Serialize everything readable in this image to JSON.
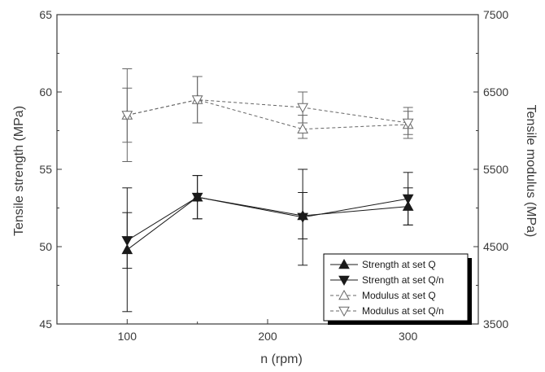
{
  "chart_data": {
    "type": "line",
    "xlabel": "n (rpm)",
    "ylabel": "Tensile strength (MPa)",
    "y2label": "Tensile modulus (MPa)",
    "xlim": [
      50,
      350
    ],
    "ylim": [
      45,
      65
    ],
    "y2lim": [
      3500,
      7500
    ],
    "x_ticks": [
      "100",
      "200",
      "300"
    ],
    "y_ticks": [
      "45",
      "50",
      "55",
      "60",
      "65"
    ],
    "y2_ticks": [
      "3500",
      "4500",
      "5500",
      "6500",
      "7500"
    ],
    "grid": false,
    "legend_position": "bottom-right",
    "x": [
      100,
      150,
      225,
      300
    ],
    "series": [
      {
        "name": "Strength at set Q",
        "axis": "left",
        "marker": "triangle-up",
        "filled": true,
        "line": "solid",
        "values": [
          49.8,
          53.2,
          52.0,
          52.6
        ],
        "err_low": [
          45.8,
          51.8,
          48.8,
          51.4
        ],
        "err_high": [
          53.8,
          54.6,
          55.0,
          53.8
        ]
      },
      {
        "name": "Strength at set Q/n",
        "axis": "left",
        "marker": "triangle-down",
        "filled": true,
        "line": "solid",
        "values": [
          50.4,
          53.2,
          51.9,
          53.1
        ],
        "err_low": [
          48.6,
          51.8,
          50.5,
          51.4
        ],
        "err_high": [
          52.2,
          54.6,
          53.5,
          54.8
        ]
      },
      {
        "name": "Modulus at set Q",
        "axis": "right",
        "marker": "triangle-up",
        "filled": false,
        "line": "dashed",
        "values": [
          6200,
          6400,
          6020,
          6080
        ],
        "err_low": [
          5600,
          6100,
          5900,
          5950
        ],
        "err_high": [
          6800,
          6700,
          6200,
          6250
        ]
      },
      {
        "name": "Modulus at set Q/n",
        "axis": "right",
        "marker": "triangle-down",
        "filled": false,
        "line": "dashed",
        "values": [
          6200,
          6400,
          6300,
          6100
        ],
        "err_low": [
          5850,
          6100,
          6100,
          5900
        ],
        "err_high": [
          6550,
          6700,
          6500,
          6300
        ]
      }
    ],
    "colors": {
      "axis": "#3a3a3a",
      "strength": "#1a1a1a",
      "modulus": "#666666",
      "legend_shadow": "#000000"
    }
  }
}
